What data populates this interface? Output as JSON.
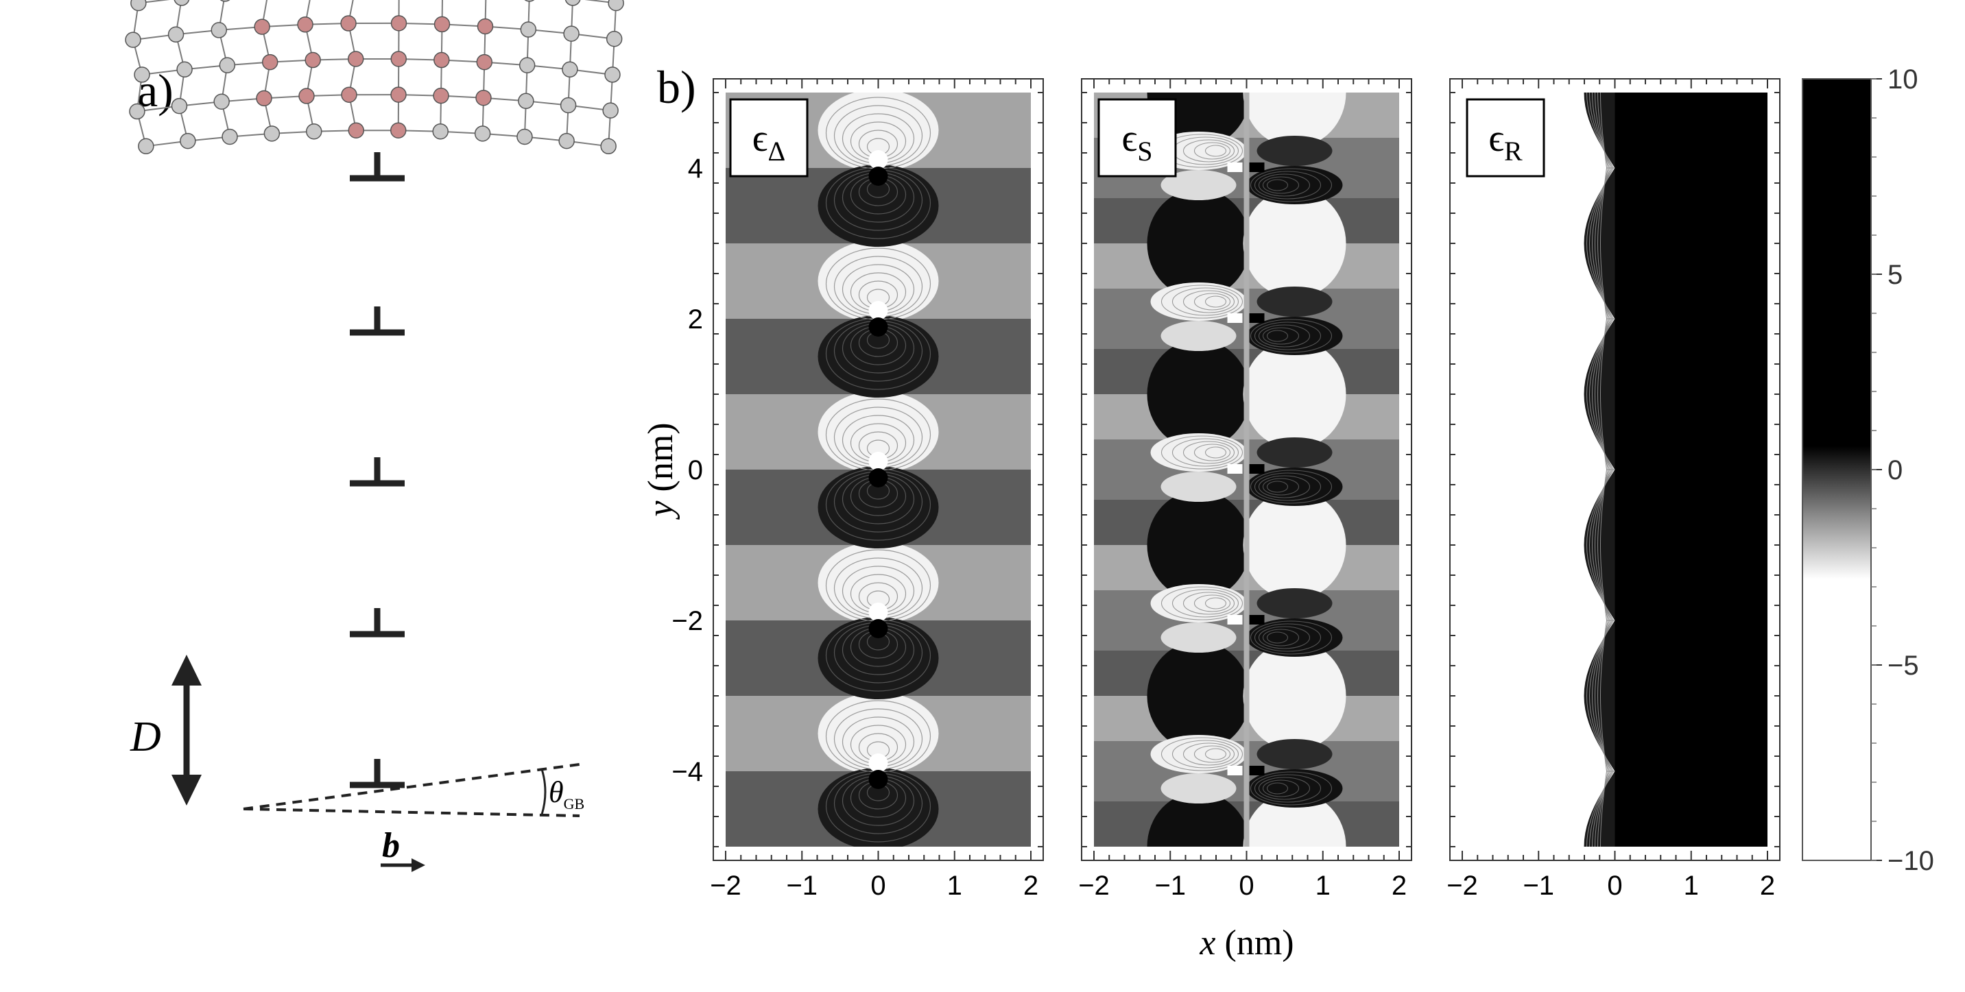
{
  "panel_a": {
    "label": "a)",
    "spacing_label": "D",
    "burgers_label": "b",
    "angle_label": "θ",
    "angle_subscript": "GB",
    "colors": {
      "bulk_atom": "#c9c9c9",
      "boundary_atom": "#c98a8a",
      "bond": "#7a7a7a"
    }
  },
  "panel_b": {
    "label": "b)",
    "ylabel_var": "y",
    "ylabel_unit": " (nm)",
    "xlabel_var": "x",
    "xlabel_unit": " (nm)",
    "panels": [
      {
        "symbol": "ϵ",
        "subscript": "Δ"
      },
      {
        "symbol": "ϵ",
        "subscript": "S"
      },
      {
        "symbol": "ϵ",
        "subscript": "R"
      }
    ]
  },
  "chart_data": [
    {
      "type": "heatmap",
      "field": "ϵΔ",
      "x_range": [
        -2,
        2
      ],
      "y_range": [
        -5,
        5
      ],
      "x_ticks": [
        -2,
        -1,
        0,
        1,
        2
      ],
      "y_ticks": [
        -4,
        -2,
        0,
        2,
        4
      ],
      "dislocation_y": [
        -4,
        -2,
        0,
        2,
        4
      ],
      "period": 2
    },
    {
      "type": "heatmap",
      "field": "ϵS",
      "x_range": [
        -2,
        2
      ],
      "y_range": [
        -5,
        5
      ],
      "x_ticks": [
        -2,
        -1,
        0,
        1,
        2
      ],
      "dislocation_y": [
        -4,
        -2,
        0,
        2,
        4
      ],
      "period": 2
    },
    {
      "type": "heatmap",
      "field": "ϵR",
      "x_range": [
        -2,
        2
      ],
      "y_range": [
        -5,
        5
      ],
      "x_ticks": [
        -2,
        -1,
        0,
        1,
        2
      ],
      "dislocation_y": [
        -4,
        -2,
        0,
        2,
        4
      ],
      "period": 2
    },
    {
      "type": "colorbar",
      "range": [
        -10,
        10
      ],
      "ticks": [
        -10,
        -5,
        0,
        5,
        10
      ],
      "colors": {
        "low": "#ffffff",
        "high": "#000000"
      }
    }
  ]
}
